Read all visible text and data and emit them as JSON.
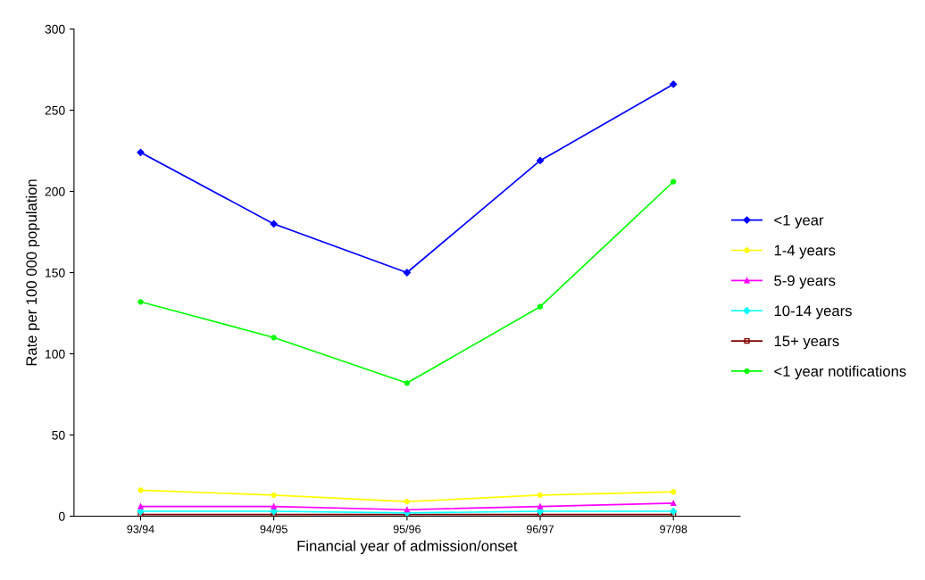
{
  "chart_data": {
    "type": "line",
    "xlabel": "Financial year of admission/onset",
    "ylabel": "Rate per 100 000 population",
    "categories": [
      "93/94",
      "94/95",
      "95/96",
      "96/97",
      "97/98"
    ],
    "series": [
      {
        "name": "<1 year",
        "color": "#0000ff",
        "marker": "diamond",
        "values": [
          224,
          180,
          150,
          219,
          266
        ]
      },
      {
        "name": "1-4 years",
        "color": "#ffff00",
        "marker": "circle",
        "values": [
          16,
          13,
          9,
          13,
          15
        ]
      },
      {
        "name": "5-9 years",
        "color": "#ff00ff",
        "marker": "triangle",
        "values": [
          6,
          6,
          4,
          6,
          8
        ]
      },
      {
        "name": "10-14 years",
        "color": "#00ffff",
        "marker": "diamond",
        "values": [
          3,
          3,
          2,
          3,
          3
        ]
      },
      {
        "name": "15+ years",
        "color": "#800000",
        "marker": "square",
        "values": [
          1,
          1,
          1,
          1,
          1
        ]
      },
      {
        "name": "<1 year notifications",
        "color": "#00ff00",
        "marker": "circle",
        "values": [
          132,
          110,
          82,
          129,
          206
        ]
      }
    ],
    "ylim": [
      0,
      300
    ],
    "yticks": [
      0,
      50,
      100,
      150,
      200,
      250,
      300
    ],
    "grid": false,
    "legend": "right",
    "line_style": "solid"
  }
}
